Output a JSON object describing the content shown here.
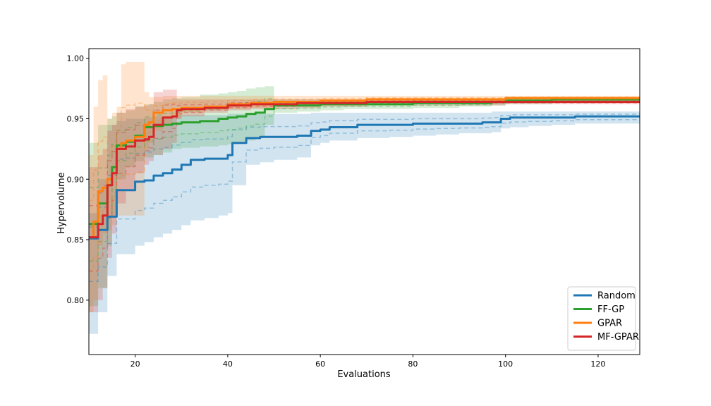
{
  "chart_data": {
    "type": "line",
    "xlabel": "Evaluations",
    "ylabel": "Hypervolume",
    "xlim": [
      10,
      129
    ],
    "ylim": [
      0.755,
      1.008
    ],
    "xticks": [
      20,
      40,
      60,
      80,
      100,
      120
    ],
    "yticks": [
      0.8,
      0.85,
      0.9,
      0.95,
      1.0
    ],
    "ytick_labels": [
      "0.80",
      "0.85",
      "0.90",
      "0.95",
      "1.00"
    ],
    "grid": false,
    "legend_position": "bottom-right",
    "series": [
      {
        "name": "Random",
        "color": "#1f77b4",
        "x": [
          10,
          12,
          14,
          16,
          18,
          20,
          22,
          24,
          26,
          28,
          30,
          32,
          35,
          38,
          40,
          41,
          44,
          47,
          50,
          55,
          58,
          60,
          62,
          65,
          68,
          75,
          80,
          85,
          90,
          95,
          97,
          99,
          101,
          105,
          110,
          115,
          120,
          129
        ],
        "values": [
          0.851,
          0.858,
          0.869,
          0.891,
          0.891,
          0.898,
          0.899,
          0.903,
          0.905,
          0.908,
          0.912,
          0.916,
          0.917,
          0.917,
          0.92,
          0.93,
          0.934,
          0.935,
          0.935,
          0.936,
          0.94,
          0.941,
          0.943,
          0.943,
          0.945,
          0.945,
          0.946,
          0.946,
          0.946,
          0.947,
          0.947,
          0.95,
          0.951,
          0.951,
          0.951,
          0.952,
          0.952,
          0.952
        ],
        "upper": [
          0.872,
          0.9,
          0.945,
          0.948,
          0.95,
          0.95,
          0.951,
          0.952,
          0.952,
          0.953,
          0.953,
          0.953,
          0.953,
          0.953,
          0.954,
          0.954,
          0.954,
          0.954,
          0.954,
          0.954,
          0.955,
          0.955,
          0.955,
          0.955,
          0.955,
          0.955,
          0.955,
          0.955,
          0.955,
          0.955,
          0.956,
          0.956,
          0.956,
          0.956,
          0.956,
          0.956,
          0.956,
          0.957
        ],
        "lower": [
          0.772,
          0.79,
          0.82,
          0.838,
          0.838,
          0.845,
          0.848,
          0.852,
          0.855,
          0.858,
          0.862,
          0.866,
          0.868,
          0.87,
          0.872,
          0.895,
          0.912,
          0.914,
          0.916,
          0.918,
          0.928,
          0.93,
          0.932,
          0.932,
          0.934,
          0.935,
          0.936,
          0.937,
          0.938,
          0.938,
          0.939,
          0.942,
          0.943,
          0.944,
          0.945,
          0.946,
          0.946,
          0.947
        ]
      },
      {
        "name": "FF-GP",
        "color": "#2ca02c",
        "x": [
          10,
          12,
          14,
          15,
          16,
          18,
          20,
          22,
          24,
          26,
          28,
          30,
          34,
          38,
          40,
          42,
          44,
          46,
          48,
          50,
          55,
          60,
          65,
          70,
          80,
          90,
          97,
          100,
          110,
          120,
          129
        ],
        "values": [
          0.863,
          0.88,
          0.895,
          0.91,
          0.928,
          0.931,
          0.936,
          0.943,
          0.944,
          0.945,
          0.946,
          0.947,
          0.948,
          0.95,
          0.951,
          0.952,
          0.954,
          0.955,
          0.958,
          0.961,
          0.961,
          0.962,
          0.962,
          0.962,
          0.963,
          0.963,
          0.964,
          0.965,
          0.966,
          0.966,
          0.966
        ],
        "upper": [
          0.93,
          0.945,
          0.95,
          0.952,
          0.955,
          0.957,
          0.96,
          0.962,
          0.964,
          0.966,
          0.967,
          0.968,
          0.97,
          0.971,
          0.972,
          0.973,
          0.975,
          0.976,
          0.977,
          0.966,
          0.966,
          0.966,
          0.966,
          0.967,
          0.967,
          0.967,
          0.967,
          0.968,
          0.968,
          0.968,
          0.968
        ],
        "lower": [
          0.795,
          0.81,
          0.845,
          0.87,
          0.9,
          0.91,
          0.915,
          0.918,
          0.92,
          0.922,
          0.925,
          0.926,
          0.927,
          0.928,
          0.929,
          0.93,
          0.932,
          0.934,
          0.945,
          0.955,
          0.956,
          0.957,
          0.958,
          0.958,
          0.959,
          0.96,
          0.961,
          0.962,
          0.963,
          0.964,
          0.964
        ]
      },
      {
        "name": "GPAR",
        "color": "#ff7f0e",
        "x": [
          10,
          11,
          12,
          13,
          14,
          15,
          16,
          17,
          18,
          20,
          22,
          23,
          24,
          26,
          28,
          30,
          35,
          40,
          45,
          50,
          60,
          70,
          80,
          90,
          100,
          110,
          120,
          129
        ],
        "values": [
          0.852,
          0.865,
          0.89,
          0.893,
          0.9,
          0.905,
          0.925,
          0.93,
          0.932,
          0.935,
          0.945,
          0.947,
          0.955,
          0.957,
          0.958,
          0.959,
          0.96,
          0.962,
          0.963,
          0.964,
          0.965,
          0.966,
          0.966,
          0.966,
          0.967,
          0.967,
          0.967,
          0.967
        ],
        "upper": [
          0.92,
          0.96,
          0.982,
          0.986,
          0.95,
          0.955,
          0.96,
          0.995,
          0.997,
          0.997,
          0.972,
          0.968,
          0.968,
          0.969,
          0.969,
          0.969,
          0.969,
          0.969,
          0.969,
          0.969,
          0.969,
          0.969,
          0.969,
          0.969,
          0.969,
          0.969,
          0.969,
          0.969
        ],
        "lower": [
          0.79,
          0.8,
          0.845,
          0.855,
          0.858,
          0.862,
          0.87,
          0.87,
          0.87,
          0.87,
          0.925,
          0.93,
          0.94,
          0.945,
          0.95,
          0.955,
          0.957,
          0.958,
          0.959,
          0.96,
          0.961,
          0.962,
          0.963,
          0.963,
          0.964,
          0.964,
          0.964,
          0.964
        ]
      },
      {
        "name": "MF-GPAR",
        "color": "#d62728",
        "x": [
          10,
          12,
          13,
          14,
          15,
          16,
          18,
          20,
          22,
          23,
          24,
          26,
          28,
          29,
          30,
          35,
          40,
          45,
          50,
          55,
          60,
          70,
          80,
          90,
          100,
          110,
          120,
          129
        ],
        "values": [
          0.852,
          0.863,
          0.87,
          0.895,
          0.905,
          0.925,
          0.927,
          0.932,
          0.933,
          0.935,
          0.945,
          0.951,
          0.952,
          0.957,
          0.958,
          0.959,
          0.961,
          0.962,
          0.962,
          0.963,
          0.963,
          0.964,
          0.964,
          0.964,
          0.964,
          0.964,
          0.964,
          0.964
        ],
        "upper": [
          0.91,
          0.92,
          0.925,
          0.94,
          0.945,
          0.955,
          0.958,
          0.96,
          0.961,
          0.962,
          0.972,
          0.974,
          0.974,
          0.966,
          0.966,
          0.966,
          0.966,
          0.966,
          0.966,
          0.966,
          0.966,
          0.966,
          0.966,
          0.966,
          0.966,
          0.966,
          0.966,
          0.966
        ],
        "lower": [
          0.79,
          0.8,
          0.81,
          0.835,
          0.855,
          0.88,
          0.89,
          0.905,
          0.912,
          0.915,
          0.92,
          0.925,
          0.93,
          0.95,
          0.952,
          0.955,
          0.957,
          0.958,
          0.958,
          0.959,
          0.96,
          0.961,
          0.961,
          0.961,
          0.962,
          0.962,
          0.962,
          0.962
        ]
      }
    ]
  }
}
